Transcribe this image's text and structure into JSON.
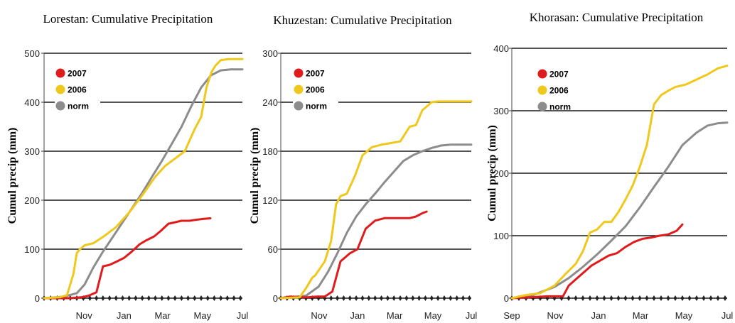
{
  "figure": {
    "ylabel": "Cumul precip (mm)"
  },
  "colors": {
    "2007": "#e01b1b",
    "2006": "#f0c81c",
    "norm": "#8c8c8c"
  },
  "legend": [
    "2007",
    "2006",
    "norm"
  ],
  "chart_data": [
    {
      "type": "line",
      "title": "Lorestan: Cumulative Precipitation",
      "ylabel": "Cumul precip (mm)",
      "xlabel": "",
      "x_ticks": [
        "Nov",
        "Jan",
        "Mar",
        "May",
        "Jul"
      ],
      "x_tick_pos": [
        61,
        122,
        181,
        242,
        303
      ],
      "xlim": [
        0,
        303
      ],
      "ylim": [
        0,
        500
      ],
      "yticks": [
        0,
        100,
        200,
        300,
        400,
        500
      ],
      "grid": true,
      "legend_position": "top-left",
      "series": [
        {
          "name": "2007",
          "x": [
            0,
            40,
            58,
            68,
            80,
            90,
            100,
            110,
            122,
            134,
            146,
            156,
            168,
            178,
            190,
            200,
            210,
            222,
            232,
            244,
            254
          ],
          "y": [
            0,
            0,
            2,
            5,
            12,
            65,
            68,
            74,
            82,
            95,
            110,
            118,
            126,
            137,
            152,
            155,
            158,
            158,
            160,
            162,
            163
          ]
        },
        {
          "name": "2006",
          "x": [
            0,
            25,
            35,
            45,
            50,
            55,
            62,
            75,
            90,
            110,
            130,
            150,
            170,
            185,
            200,
            215,
            230,
            240,
            248,
            256,
            262,
            270,
            282,
            303
          ],
          "y": [
            0,
            2,
            6,
            50,
            92,
            100,
            108,
            112,
            125,
            145,
            175,
            210,
            248,
            270,
            285,
            300,
            345,
            370,
            430,
            462,
            475,
            486,
            488,
            488
          ]
        },
        {
          "name": "norm",
          "x": [
            0,
            30,
            50,
            62,
            75,
            90,
            105,
            120,
            135,
            150,
            165,
            180,
            195,
            210,
            225,
            240,
            255,
            270,
            285,
            303
          ],
          "y": [
            0,
            3,
            10,
            28,
            62,
            95,
            125,
            155,
            185,
            215,
            248,
            280,
            315,
            350,
            392,
            430,
            455,
            465,
            467,
            467
          ]
        }
      ]
    },
    {
      "type": "line",
      "title": "Khuzestan: Cumulative Precipitation",
      "ylabel": "Cumul precip (mm)",
      "xlabel": "",
      "x_ticks": [
        "Nov",
        "Jan",
        "Mar",
        "May",
        "Jul"
      ],
      "x_tick_pos": [
        61,
        122,
        181,
        242,
        303
      ],
      "xlim": [
        0,
        303
      ],
      "ylim": [
        0,
        300
      ],
      "yticks": [
        0,
        60,
        120,
        180,
        240,
        300
      ],
      "grid": true,
      "legend_position": "top-left",
      "series": [
        {
          "name": "2007",
          "x": [
            0,
            15,
            40,
            58,
            70,
            82,
            95,
            110,
            122,
            135,
            150,
            165,
            180,
            195,
            205,
            215,
            225,
            232
          ],
          "y": [
            0,
            2,
            1,
            2,
            2,
            8,
            45,
            55,
            60,
            85,
            95,
            98,
            98,
            98,
            98,
            100,
            104,
            106
          ]
        },
        {
          "name": "2006",
          "x": [
            0,
            30,
            40,
            50,
            55,
            70,
            80,
            88,
            95,
            105,
            118,
            130,
            145,
            160,
            175,
            190,
            205,
            215,
            225,
            240,
            250,
            260,
            303
          ],
          "y": [
            0,
            1,
            12,
            25,
            28,
            45,
            70,
            115,
            125,
            128,
            150,
            175,
            185,
            188,
            190,
            192,
            210,
            212,
            230,
            240,
            241,
            241,
            241
          ]
        },
        {
          "name": "norm",
          "x": [
            0,
            40,
            60,
            75,
            90,
            105,
            120,
            135,
            150,
            165,
            180,
            195,
            210,
            225,
            240,
            255,
            270,
            285,
            303
          ],
          "y": [
            0,
            3,
            14,
            32,
            55,
            80,
            100,
            115,
            128,
            142,
            155,
            168,
            175,
            180,
            184,
            187,
            188,
            188,
            188
          ]
        }
      ]
    },
    {
      "type": "line",
      "title": "Khorasan: Cumulative Precipitation",
      "ylabel": "Cumul precip (mm)",
      "xlabel": "",
      "x_ticks": [
        "Sep",
        "Nov",
        "Jan",
        "Mar",
        "May",
        "Jul"
      ],
      "x_tick_pos": [
        0,
        61,
        122,
        181,
        242,
        303
      ],
      "xlim": [
        0,
        303
      ],
      "ylim": [
        0,
        400
      ],
      "yticks": [
        0,
        100,
        200,
        300,
        400
      ],
      "grid": true,
      "legend_position": "top-left",
      "series": [
        {
          "name": "2007",
          "x": [
            0,
            20,
            50,
            72,
            80,
            92,
            100,
            112,
            124,
            136,
            148,
            160,
            172,
            184,
            196,
            208,
            220,
            232,
            240
          ],
          "y": [
            0,
            1,
            3,
            3,
            20,
            32,
            40,
            52,
            60,
            68,
            72,
            82,
            90,
            95,
            97,
            100,
            102,
            108,
            118
          ]
        },
        {
          "name": "2006",
          "x": [
            0,
            20,
            40,
            60,
            75,
            90,
            100,
            110,
            120,
            130,
            140,
            150,
            160,
            170,
            180,
            190,
            200,
            210,
            220,
            230,
            245,
            260,
            275,
            290,
            303
          ],
          "y": [
            0,
            5,
            8,
            20,
            38,
            55,
            75,
            105,
            110,
            122,
            122,
            138,
            158,
            180,
            210,
            245,
            310,
            325,
            332,
            338,
            342,
            350,
            358,
            368,
            372
          ]
        },
        {
          "name": "norm",
          "x": [
            0,
            30,
            60,
            80,
            100,
            120,
            140,
            160,
            180,
            200,
            220,
            240,
            260,
            275,
            290,
            303
          ],
          "y": [
            0,
            5,
            18,
            32,
            50,
            70,
            92,
            115,
            145,
            178,
            210,
            245,
            265,
            276,
            280,
            281
          ]
        }
      ]
    }
  ]
}
